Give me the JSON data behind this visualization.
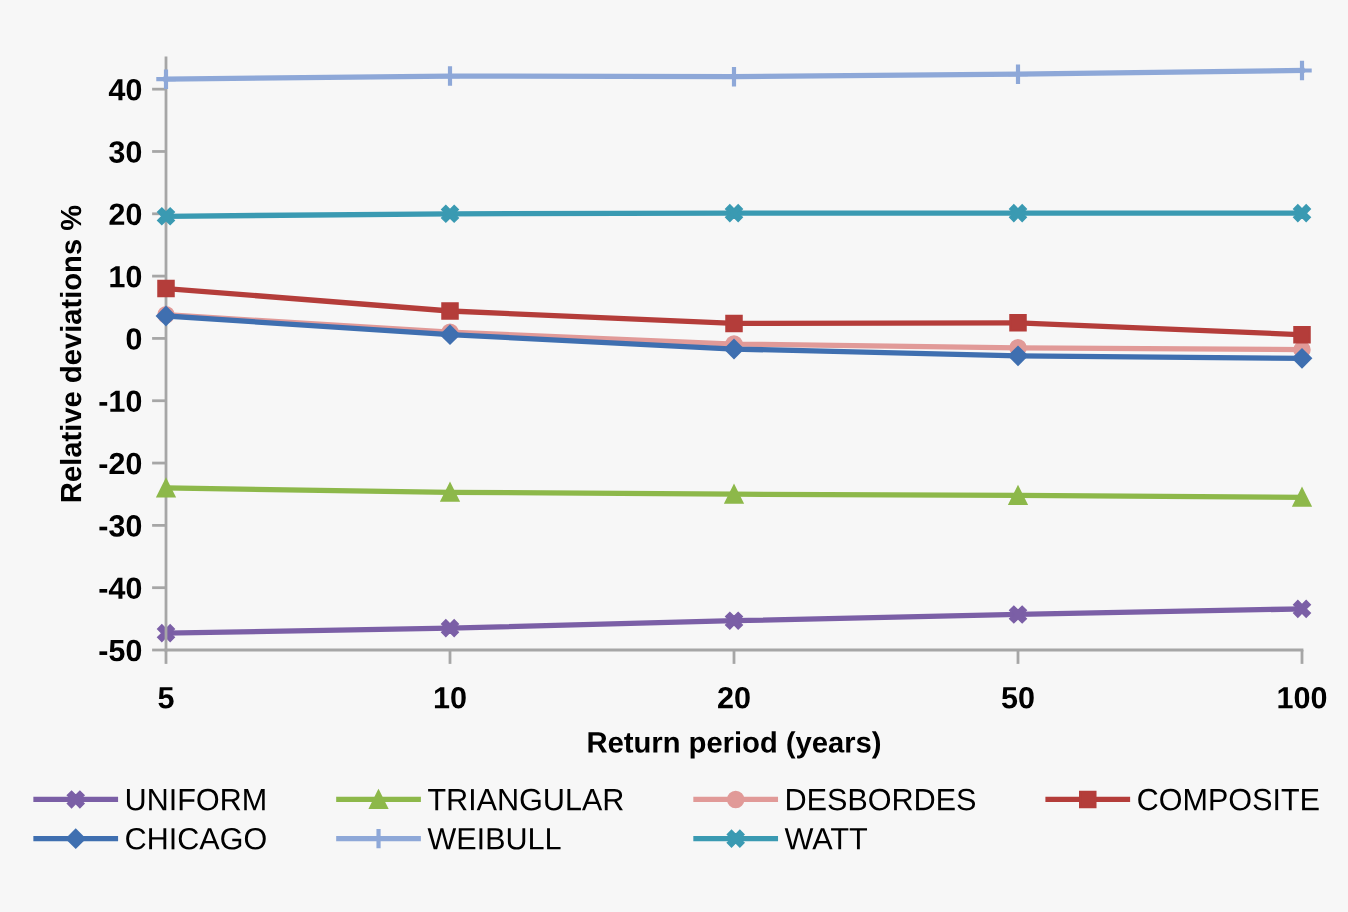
{
  "chart_data": {
    "type": "line",
    "xlabel": "Return period (years)",
    "ylabel": "Relative deviations %",
    "categories": [
      "5",
      "10",
      "20",
      "50",
      "100"
    ],
    "ylim": [
      -50,
      45
    ],
    "yticks": [
      -50,
      -40,
      -30,
      -20,
      -10,
      0,
      10,
      20,
      30,
      40
    ],
    "grid": false,
    "legend": "bottom",
    "line_style": "solid",
    "series": [
      {
        "name": "UNIFORM",
        "color": "#7b5fa6",
        "marker": "cross",
        "values": [
          -47.3,
          -46.5,
          -45.3,
          -44.3,
          -43.4
        ]
      },
      {
        "name": "TRIANGULAR",
        "color": "#8db84a",
        "marker": "triangle",
        "values": [
          -24.0,
          -24.7,
          -25.0,
          -25.2,
          -25.5
        ]
      },
      {
        "name": "DESBORDES",
        "color": "#e19a98",
        "marker": "circle",
        "values": [
          3.8,
          1.0,
          -0.9,
          -1.5,
          -1.8
        ]
      },
      {
        "name": "COMPOSITE",
        "color": "#b43d3a",
        "marker": "square",
        "values": [
          8.0,
          4.4,
          2.4,
          2.5,
          0.6
        ]
      },
      {
        "name": "CHICAGO",
        "color": "#3f6fb0",
        "marker": "diamond",
        "values": [
          3.6,
          0.6,
          -1.7,
          -2.8,
          -3.2
        ]
      },
      {
        "name": "WEIBULL",
        "color": "#8ea8d8",
        "marker": "plus",
        "values": [
          41.6,
          42.1,
          42.0,
          42.4,
          43.0
        ]
      },
      {
        "name": "WATT",
        "color": "#3a9ab2",
        "marker": "cross",
        "values": [
          19.6,
          20.0,
          20.1,
          20.1,
          20.1
        ]
      }
    ]
  }
}
